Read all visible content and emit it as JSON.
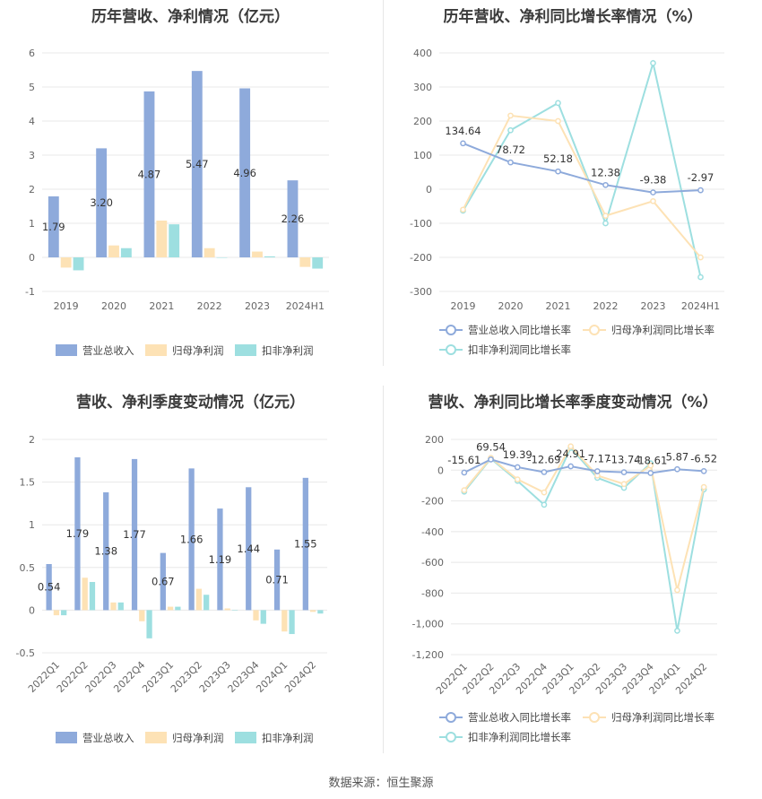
{
  "charts": [
    {
      "type": "bar",
      "title": "历年营收、净利情况（亿元）",
      "categories": [
        "2019",
        "2020",
        "2021",
        "2022",
        "2023",
        "2024H1"
      ],
      "ylim": [
        -1,
        6
      ],
      "yticks": [
        -1,
        0,
        1,
        2,
        3,
        4,
        5,
        6
      ],
      "grid": true,
      "legend_position": "bottom",
      "series": [
        {
          "name": "营业总收入",
          "color": "#8eaadb",
          "values": [
            1.79,
            3.2,
            4.87,
            5.47,
            4.96,
            2.26
          ],
          "labels": [
            "1.79",
            "3.20",
            "4.87",
            "5.47",
            "4.96",
            "2.26"
          ]
        },
        {
          "name": "归母净利润",
          "color": "#fde2b5",
          "values": [
            -0.3,
            0.35,
            1.08,
            0.27,
            0.17,
            -0.28
          ]
        },
        {
          "name": "扣非净利润",
          "color": "#9ddfe0",
          "values": [
            -0.38,
            0.27,
            0.97,
            0.0,
            0.03,
            -0.33
          ]
        }
      ]
    },
    {
      "type": "line",
      "title": "历年营收、净利同比增长率情况（%）",
      "categories": [
        "2019",
        "2020",
        "2021",
        "2022",
        "2023",
        "2024H1"
      ],
      "ylim": [
        -300,
        400
      ],
      "yticks": [
        -300,
        -200,
        -100,
        0,
        100,
        200,
        300,
        400
      ],
      "grid": true,
      "legend_position": "bottom",
      "series": [
        {
          "name": "营业总收入同比增长率",
          "color": "#8eaadb",
          "values": [
            134.64,
            78.72,
            52.18,
            12.38,
            -9.38,
            -2.97
          ],
          "labels": [
            "134.64",
            "78.72",
            "52.18",
            "12.38",
            "-9.38",
            "-2.97"
          ]
        },
        {
          "name": "归母净利润同比增长率",
          "color": "#fde2b5",
          "values": [
            -60,
            216,
            200,
            -78,
            -35,
            -200
          ]
        },
        {
          "name": "扣非净利润同比增长率",
          "color": "#9ddfe0",
          "values": [
            -63,
            173,
            253,
            -100,
            370,
            -258
          ]
        }
      ]
    },
    {
      "type": "bar",
      "title": "营收、净利季度变动情况（亿元）",
      "categories": [
        "2022Q1",
        "2022Q2",
        "2022Q3",
        "2022Q4",
        "2023Q1",
        "2023Q2",
        "2023Q3",
        "2023Q4",
        "2024Q1",
        "2024Q2"
      ],
      "ylim": [
        -0.5,
        2
      ],
      "yticks": [
        -0.5,
        0,
        0.5,
        1,
        1.5,
        2
      ],
      "grid": true,
      "legend_position": "bottom",
      "series": [
        {
          "name": "营业总收入",
          "color": "#8eaadb",
          "values": [
            0.54,
            1.79,
            1.38,
            1.77,
            0.67,
            1.66,
            1.19,
            1.44,
            0.71,
            1.55
          ],
          "labels": [
            "0.54",
            "1.79",
            "1.38",
            "1.77",
            "0.67",
            "1.66",
            "1.19",
            "1.44",
            "0.71",
            "1.55"
          ]
        },
        {
          "name": "归母净利润",
          "color": "#fde2b5",
          "values": [
            -0.06,
            0.38,
            0.09,
            -0.13,
            0.04,
            0.25,
            0.02,
            -0.12,
            -0.25,
            -0.02
          ]
        },
        {
          "name": "扣非净利润",
          "color": "#9ddfe0",
          "values": [
            -0.06,
            0.33,
            0.09,
            -0.33,
            0.04,
            0.18,
            0.0,
            -0.16,
            -0.28,
            -0.04
          ]
        }
      ]
    },
    {
      "type": "line",
      "title": "营收、净利同比增长率季度变动情况（%）",
      "categories": [
        "2022Q1",
        "2022Q2",
        "2022Q3",
        "2022Q4",
        "2023Q1",
        "2023Q2",
        "2023Q3",
        "2023Q4",
        "2024Q1",
        "2024Q2"
      ],
      "ylim": [
        -1200,
        200
      ],
      "yticks": [
        -1200,
        -1000,
        -800,
        -600,
        -400,
        -200,
        0,
        200
      ],
      "ytick_labels": [
        "-1,200",
        "-1,000",
        "-800",
        "-600",
        "-400",
        "-200",
        "0",
        "200"
      ],
      "grid": true,
      "legend_position": "bottom",
      "series": [
        {
          "name": "营业总收入同比增长率",
          "color": "#8eaadb",
          "values": [
            -15.61,
            69.54,
            19.39,
            -12.69,
            24.91,
            -7.17,
            -13.74,
            -18.61,
            5.87,
            -6.52
          ],
          "labels": [
            "-15.61",
            "69.54",
            "19.39",
            "-12.69",
            "24.91",
            "-7.17",
            "-13.74",
            "-18.61",
            "5.87",
            "-6.52"
          ]
        },
        {
          "name": "归母净利润同比增长率",
          "color": "#fde2b5",
          "values": [
            -130,
            80,
            -60,
            -145,
            155,
            -35,
            -90,
            30,
            -780,
            -110
          ]
        },
        {
          "name": "扣非净利润同比增长率",
          "color": "#9ddfe0",
          "values": [
            -140,
            75,
            -70,
            -225,
            145,
            -50,
            -115,
            45,
            -1045,
            -125
          ]
        }
      ]
    }
  ],
  "source": "数据来源：恒生聚源"
}
